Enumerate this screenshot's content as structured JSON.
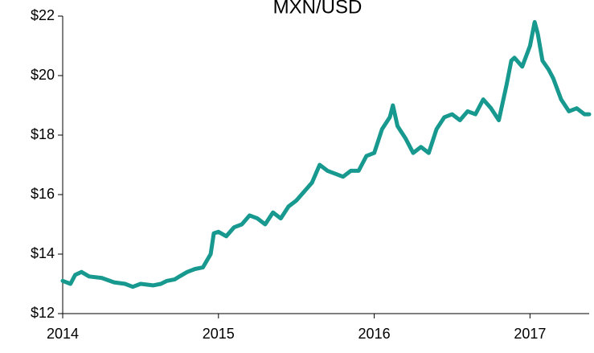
{
  "chart_data": {
    "type": "line",
    "title": "MXN/USD",
    "x": [
      2014.0,
      2014.05,
      2014.08,
      2014.12,
      2014.17,
      2014.25,
      2014.33,
      2014.4,
      2014.45,
      2014.5,
      2014.58,
      2014.63,
      2014.67,
      2014.72,
      2014.75,
      2014.8,
      2014.85,
      2014.9,
      2014.95,
      2014.97,
      2015.0,
      2015.05,
      2015.1,
      2015.15,
      2015.2,
      2015.25,
      2015.3,
      2015.35,
      2015.4,
      2015.45,
      2015.5,
      2015.55,
      2015.6,
      2015.65,
      2015.7,
      2015.75,
      2015.8,
      2015.85,
      2015.9,
      2015.95,
      2016.0,
      2016.05,
      2016.1,
      2016.12,
      2016.15,
      2016.2,
      2016.25,
      2016.3,
      2016.35,
      2016.4,
      2016.45,
      2016.5,
      2016.55,
      2016.6,
      2016.65,
      2016.7,
      2016.75,
      2016.8,
      2016.85,
      2016.88,
      2016.9,
      2016.95,
      2017.0,
      2017.03,
      2017.05,
      2017.08,
      2017.12,
      2017.15,
      2017.2,
      2017.25,
      2017.3,
      2017.35,
      2017.38
    ],
    "series": [
      {
        "name": "MXN/USD",
        "color": "#17998f",
        "values": [
          13.1,
          13.0,
          13.3,
          13.4,
          13.25,
          13.2,
          13.05,
          13.0,
          12.9,
          13.0,
          12.95,
          13.0,
          13.1,
          13.15,
          13.25,
          13.4,
          13.5,
          13.55,
          14.0,
          14.7,
          14.75,
          14.6,
          14.9,
          15.0,
          15.3,
          15.2,
          15.0,
          15.4,
          15.2,
          15.6,
          15.8,
          16.1,
          16.4,
          17.0,
          16.8,
          16.7,
          16.6,
          16.8,
          16.8,
          17.3,
          17.4,
          18.2,
          18.6,
          19.0,
          18.3,
          17.9,
          17.4,
          17.6,
          17.4,
          18.2,
          18.6,
          18.7,
          18.5,
          18.8,
          18.7,
          19.2,
          18.9,
          18.5,
          19.7,
          20.5,
          20.6,
          20.3,
          21.0,
          21.8,
          21.4,
          20.5,
          20.2,
          19.9,
          19.2,
          18.8,
          18.9,
          18.7,
          18.7
        ]
      }
    ],
    "xlim": [
      2014,
      2017.38
    ],
    "xticks": [
      2014,
      2015,
      2016,
      2017
    ],
    "ylim": [
      12,
      22
    ],
    "yticks": [
      {
        "value": 12,
        "label": "$12"
      },
      {
        "value": 14,
        "label": "$14"
      },
      {
        "value": 16,
        "label": "$16"
      },
      {
        "value": 18,
        "label": "$18"
      },
      {
        "value": 20,
        "label": "$20"
      },
      {
        "value": 22,
        "label": "$22"
      }
    ],
    "grid": false
  }
}
